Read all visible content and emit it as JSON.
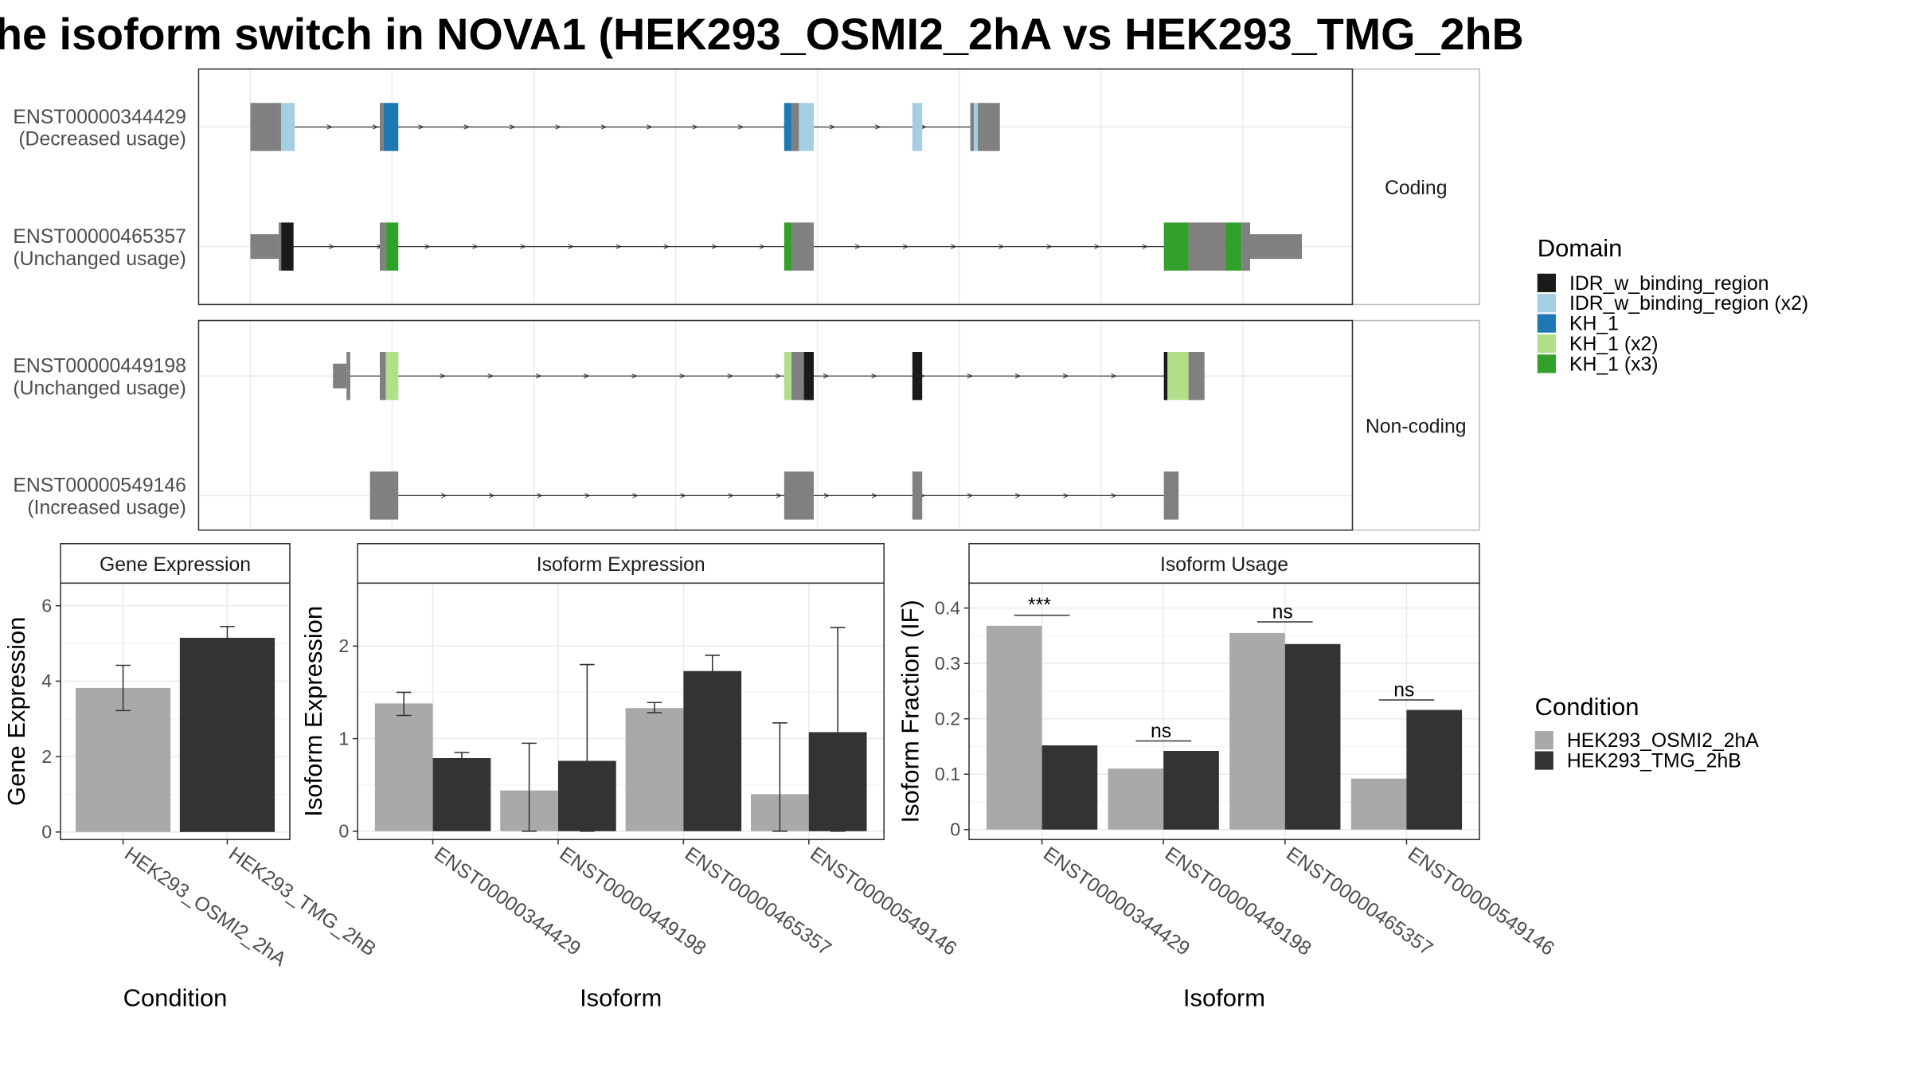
{
  "title": "he isoform switch in NOVA1 (HEK293_OSMI2_2hA vs HEK293_TMG_2hB",
  "structure": {
    "facets": [
      {
        "name": "Coding",
        "isoforms": [
          {
            "id": "ENST00000344429",
            "usage": "(Decreased usage)",
            "line": [
              232,
              788
            ],
            "segs": [
              [
                203,
                226,
                "#808080",
                "big"
              ],
              [
                226,
                228,
                "#808080",
                "big"
              ],
              [
                228,
                239,
                "#a6cee3",
                "big"
              ],
              [
                308,
                311,
                "#808080",
                "big"
              ],
              [
                311,
                323,
                "#1f78b4",
                "big"
              ],
              [
                636,
                642,
                "#1f78b4",
                "big"
              ],
              [
                642,
                648,
                "#808080",
                "big"
              ],
              [
                648,
                660,
                "#a6cee3",
                "big"
              ],
              [
                740,
                748,
                "#a6cee3",
                "big"
              ],
              [
                787,
                790,
                "#808080",
                "big"
              ],
              [
                790,
                793,
                "#a6cee3",
                "big"
              ],
              [
                793,
                811,
                "#808080",
                "big"
              ]
            ]
          },
          {
            "id": "ENST00000465357",
            "usage": "(Unchanged usage)",
            "line": [
              232,
              1008
            ],
            "segs": [
              [
                203,
                226,
                "#808080",
                "small"
              ],
              [
                226,
                228,
                "#808080",
                "big"
              ],
              [
                228,
                238,
                "#1a1a1a",
                "big"
              ],
              [
                308,
                313,
                "#808080",
                "big"
              ],
              [
                313,
                323,
                "#33a02c",
                "big"
              ],
              [
                636,
                642,
                "#33a02c",
                "big"
              ],
              [
                642,
                660,
                "#808080",
                "big"
              ],
              [
                944,
                964,
                "#33a02c",
                "big"
              ],
              [
                964,
                994,
                "#808080",
                "big"
              ],
              [
                994,
                1007,
                "#33a02c",
                "big"
              ],
              [
                1007,
                1014,
                "#808080",
                "big"
              ],
              [
                1014,
                1056,
                "#808080",
                "small"
              ]
            ]
          }
        ]
      },
      {
        "name": "Non-coding",
        "isoforms": [
          {
            "id": "ENST00000449198",
            "usage": "(Unchanged usage)",
            "line": [
              283,
              944
            ],
            "segs": [
              [
                270,
                281,
                "#808080",
                "small"
              ],
              [
                281,
                284,
                "#808080",
                "big"
              ],
              [
                308,
                313,
                "#808080",
                "big"
              ],
              [
                313,
                323,
                "#b2df8a",
                "big"
              ],
              [
                636,
                642,
                "#b2df8a",
                "big"
              ],
              [
                642,
                652,
                "#808080",
                "big"
              ],
              [
                652,
                660,
                "#1a1a1a",
                "big"
              ],
              [
                740,
                748,
                "#1a1a1a",
                "big"
              ],
              [
                944,
                947,
                "#1a1a1a",
                "big"
              ],
              [
                947,
                964,
                "#b2df8a",
                "big"
              ],
              [
                964,
                977,
                "#808080",
                "big"
              ]
            ]
          },
          {
            "id": "ENST00000549146",
            "usage": "(Increased usage)",
            "line": [
              323,
              944
            ],
            "segs": [
              [
                300,
                323,
                "#808080",
                "big"
              ],
              [
                636,
                660,
                "#808080",
                "big"
              ],
              [
                740,
                748,
                "#808080",
                "big"
              ],
              [
                944,
                956,
                "#808080",
                "big"
              ]
            ]
          }
        ]
      }
    ]
  },
  "domain_legend": {
    "title": "Domain",
    "items": [
      {
        "label": "IDR_w_binding_region",
        "color": "#1a1a1a"
      },
      {
        "label": "IDR_w_binding_region (x2)",
        "color": "#a6cee3"
      },
      {
        "label": "KH_1",
        "color": "#1f78b4"
      },
      {
        "label": "KH_1 (x2)",
        "color": "#b2df8a"
      },
      {
        "label": "KH_1 (x3)",
        "color": "#33a02c"
      }
    ]
  },
  "condition_legend": {
    "title": "Condition",
    "items": [
      {
        "label": "HEK293_OSMI2_2hA",
        "color": "#a9a9a9"
      },
      {
        "label": "HEK293_TMG_2hB",
        "color": "#333333"
      }
    ]
  },
  "chart_data": [
    {
      "type": "bar",
      "title": "Gene Expression",
      "xlabel": "Condition",
      "ylabel": "Gene Expression",
      "ylim": [
        -0.2,
        6.6
      ],
      "yticks": [
        0,
        2,
        4,
        6
      ],
      "categories": [
        "HEK293_OSMI2_2hA",
        "HEK293_TMG_2hB"
      ],
      "values": [
        3.82,
        5.15
      ],
      "err_low": [
        3.22,
        4.88
      ],
      "err_high": [
        4.42,
        5.45
      ],
      "colors": [
        "#a9a9a9",
        "#333333"
      ]
    },
    {
      "type": "bar",
      "title": "Isoform Expression",
      "xlabel": "Isoform",
      "ylabel": "Isoform Expression",
      "ylim": [
        -0.09,
        2.68
      ],
      "yticks": [
        0,
        1,
        2
      ],
      "categories": [
        "ENST00000344429",
        "ENST00000449198",
        "ENST00000465357",
        "ENST00000549146"
      ],
      "series": [
        {
          "name": "HEK293_OSMI2_2hA",
          "color": "#a9a9a9",
          "values": [
            1.38,
            0.44,
            1.33,
            0.4
          ],
          "err_low": [
            1.25,
            0.0,
            1.28,
            0.0
          ],
          "err_high": [
            1.5,
            0.95,
            1.39,
            1.17
          ]
        },
        {
          "name": "HEK293_TMG_2hB",
          "color": "#333333",
          "values": [
            0.79,
            0.76,
            1.73,
            1.07
          ],
          "err_low": [
            0.73,
            0.0,
            1.56,
            0.0
          ],
          "err_high": [
            0.85,
            1.8,
            1.9,
            2.2
          ]
        }
      ]
    },
    {
      "type": "bar",
      "title": "Isoform Usage",
      "xlabel": "Isoform",
      "ylabel": "Isoform Fraction (IF)",
      "ylim": [
        -0.018,
        0.445
      ],
      "yticks": [
        0.0,
        0.1,
        0.2,
        0.3,
        0.4
      ],
      "categories": [
        "ENST00000344429",
        "ENST00000449198",
        "ENST00000465357",
        "ENST00000549146"
      ],
      "series": [
        {
          "name": "HEK293_OSMI2_2hA",
          "color": "#a9a9a9",
          "values": [
            0.368,
            0.11,
            0.355,
            0.092
          ]
        },
        {
          "name": "HEK293_TMG_2hB",
          "color": "#333333",
          "values": [
            0.152,
            0.142,
            0.335,
            0.216
          ]
        }
      ],
      "significance": [
        "***",
        "ns",
        "ns",
        "ns"
      ],
      "sig_y": [
        0.387,
        0.16,
        0.375,
        0.234
      ]
    }
  ]
}
